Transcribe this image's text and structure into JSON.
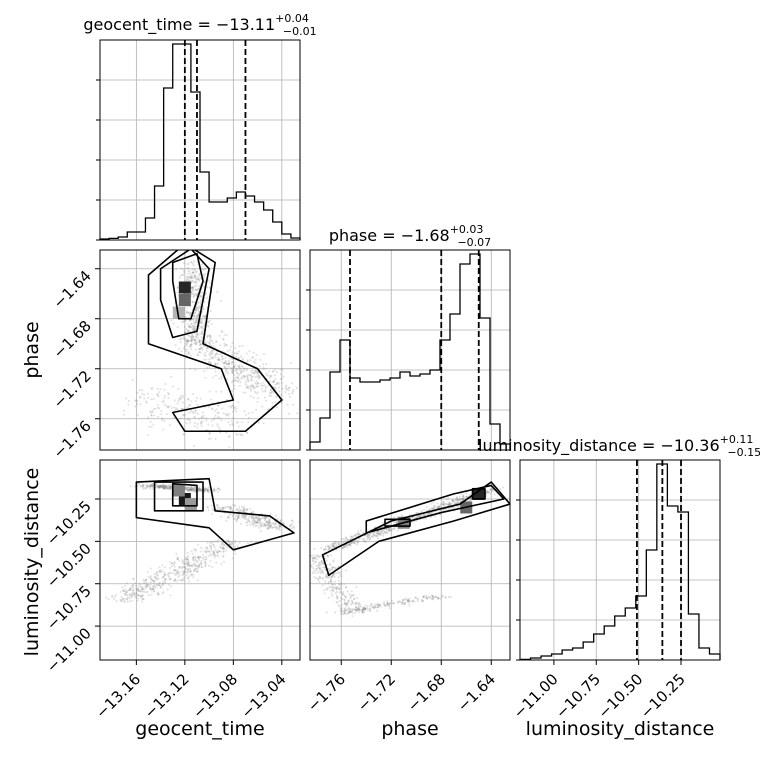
{
  "chart_data": {
    "type": "corner",
    "parameters": [
      {
        "name": "geocent_time",
        "axis_label": "geocent_time",
        "title_prefix": "geocent_time = ",
        "median": "−13.11",
        "plus": "+0.04",
        "minus": "−0.01",
        "range": [
          -13.19,
          -13.025
        ],
        "ticks": [
          -13.16,
          -13.12,
          -13.08,
          -13.04
        ],
        "tick_labels": [
          "−13.16",
          "−13.12",
          "−13.08",
          "−13.04"
        ],
        "quantiles": [
          -13.12,
          -13.11,
          -13.07
        ],
        "hist": [
          0.005,
          0.008,
          0.015,
          0.04,
          0.04,
          0.11,
          0.27,
          0.76,
          0.98,
          0.98,
          0.74,
          0.34,
          0.19,
          0.19,
          0.21,
          0.24,
          0.22,
          0.19,
          0.15,
          0.09,
          0.03,
          0.01
        ]
      },
      {
        "name": "phase",
        "axis_label": "phase",
        "title_prefix": "phase = ",
        "median": "−1.68",
        "plus": "+0.03",
        "minus": "−0.07",
        "range": [
          -1.785,
          -1.625
        ],
        "ticks": [
          -1.76,
          -1.72,
          -1.68,
          -1.64
        ],
        "tick_labels": [
          "−1.76",
          "−1.72",
          "−1.68",
          "−1.64"
        ],
        "quantiles": [
          -1.753,
          -1.68,
          -1.65
        ],
        "hist": [
          0.04,
          0.16,
          0.39,
          0.55,
          0.36,
          0.34,
          0.34,
          0.35,
          0.36,
          0.39,
          0.37,
          0.38,
          0.4,
          0.55,
          0.68,
          0.93,
          0.98,
          0.66,
          0.13,
          0.03
        ]
      },
      {
        "name": "luminosity_distance",
        "axis_label": "luminosity_distance",
        "title_prefix": "luminosity_distance = ",
        "median": "−10.36",
        "plus": "+0.11",
        "minus": "−0.15",
        "range": [
          -11.2,
          -10.02
        ],
        "ticks": [
          -11.0,
          -10.75,
          -10.5,
          -10.25
        ],
        "tick_labels": [
          "−11.00",
          "−10.75",
          "−10.50",
          "−10.25"
        ],
        "quantiles": [
          -10.51,
          -10.36,
          -10.25
        ],
        "hist": [
          0.003,
          0.01,
          0.02,
          0.03,
          0.05,
          0.06,
          0.09,
          0.13,
          0.17,
          0.22,
          0.26,
          0.32,
          0.55,
          0.98,
          0.77,
          0.74,
          0.23,
          0.06,
          0.03
        ]
      }
    ],
    "grid": true
  },
  "colors": {
    "line": "#000000",
    "grid": "#b0b0b0",
    "samples": "#808080"
  }
}
